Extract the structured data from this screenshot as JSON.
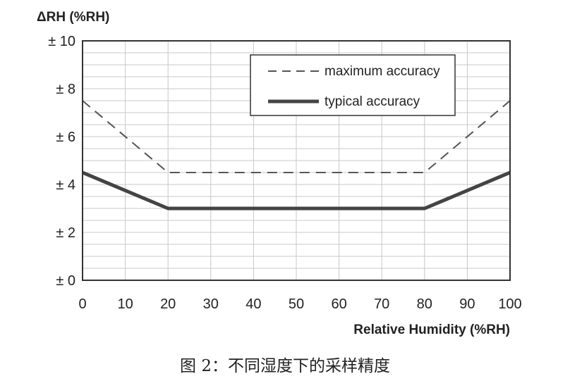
{
  "chart_data": {
    "type": "line",
    "ylabel": "ΔRH (%RH)",
    "xlabel": "Relative Humidity (%RH)",
    "x_ticks": [
      "0",
      "10",
      "20",
      "30",
      "40",
      "50",
      "60",
      "70",
      "80",
      "90",
      "100"
    ],
    "y_ticks": [
      "± 0",
      "± 2",
      "± 4",
      "± 6",
      "± 8",
      "± 10"
    ],
    "xlim": [
      0,
      100
    ],
    "ylim": [
      0,
      10
    ],
    "grid": true,
    "legend_position": "top-right",
    "series": [
      {
        "name": "maximum accuracy",
        "style": "dashed",
        "color": "#555555",
        "x": [
          0,
          20,
          80,
          100
        ],
        "y": [
          7.5,
          4.5,
          4.5,
          7.5
        ]
      },
      {
        "name": "typical accuracy",
        "style": "solid",
        "color": "#444444",
        "x": [
          0,
          20,
          80,
          100
        ],
        "y": [
          4.5,
          3,
          3,
          4.5
        ]
      }
    ]
  },
  "caption": "图 2：不同湿度下的采样精度"
}
